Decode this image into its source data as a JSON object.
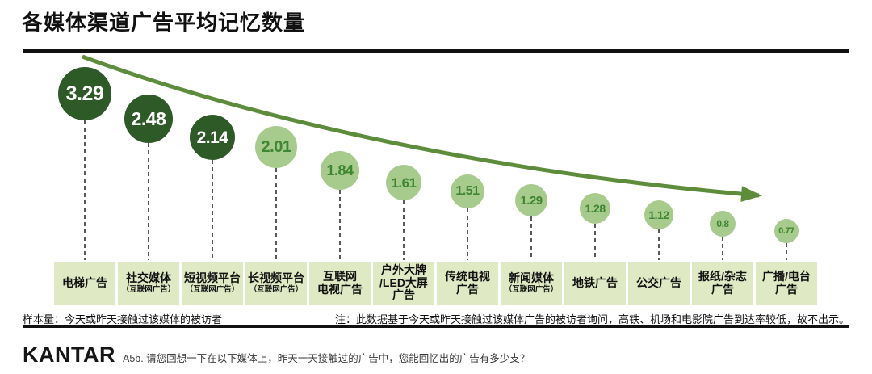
{
  "title": "各媒体渠道广告平均记忆数量",
  "chart_data": {
    "type": "scatter",
    "variant": "ranked-bubble",
    "title": "各媒体渠道广告平均记忆数量",
    "legend": "none",
    "grid": false,
    "trend_annotation": "decreasing-arrow-left-to-right",
    "value_range": [
      0.77,
      3.29
    ],
    "items": [
      {
        "label": "电梯广告",
        "sublabel": "",
        "value": 3.29,
        "dark": true
      },
      {
        "label": "社交媒体",
        "sublabel": "（互联网广告）",
        "value": 2.48,
        "dark": true
      },
      {
        "label": "短视频平台",
        "sublabel": "（互联网广告）",
        "value": 2.14,
        "dark": true
      },
      {
        "label": "长视频平台",
        "sublabel": "（互联网广告）",
        "value": 2.01,
        "dark": false
      },
      {
        "label": "互联网\n电视广告",
        "sublabel": "",
        "value": 1.84,
        "dark": false
      },
      {
        "label": "户外大牌\n/LED大屏\n广告",
        "sublabel": "",
        "value": 1.61,
        "dark": false
      },
      {
        "label": "传统电视\n广告",
        "sublabel": "",
        "value": 1.51,
        "dark": false
      },
      {
        "label": "新闻媒体",
        "sublabel": "（互联网广告）",
        "value": 1.29,
        "dark": false
      },
      {
        "label": "地铁广告",
        "sublabel": "",
        "value": 1.28,
        "dark": false
      },
      {
        "label": "公交广告",
        "sublabel": "",
        "value": 1.12,
        "dark": false
      },
      {
        "label": "报纸/杂志\n广告",
        "sublabel": "",
        "value": 0.8,
        "dark": false
      },
      {
        "label": "广播/电台\n广告",
        "sublabel": "",
        "value": 0.77,
        "dark": false
      }
    ],
    "colors": {
      "dark_circle": "#2d5a27",
      "light_circle": "#a7cb8c",
      "value_text_on_light": "#3e8631",
      "value_text_on_dark": "#ffffff",
      "trend_arrow": "#5d8c3b",
      "label_band": "#dfe9c4"
    }
  },
  "footer": {
    "sample_note": "样本量：今天或昨天接触过该媒体的被访者",
    "data_note": "注：此数据基于今天或昨天接触过该媒体广告的被访者询问，高铁、机场和电影院广告到达率较低，故不出示。"
  },
  "branding": {
    "logo": "KANTAR",
    "question": "A5b. 请您回想一下在以下媒体上，昨天一天接触过的广告中，您能回忆出的广告有多少支？"
  }
}
